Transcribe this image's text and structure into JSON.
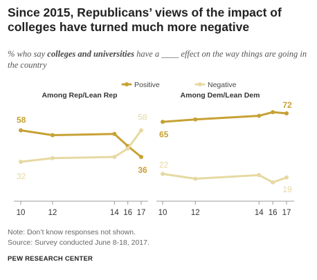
{
  "title": "Since 2015, Republicans’ views of the impact of colleges have turned much more negative",
  "subtitle": {
    "prefix": "% who say ",
    "emphasis": "colleges and universities",
    "suffix": " have a ____ effect on the way things are going in the country"
  },
  "legend": {
    "positive": "Positive",
    "negative": "Negative"
  },
  "colors": {
    "positive": "#c6a134",
    "negative": "#e6d9a2",
    "axis": "#9b9b9b",
    "label": "#555555"
  },
  "chart_data": [
    {
      "type": "line",
      "title": "Among Rep/Lean Rep",
      "x": [
        2010,
        2011.9,
        2015.6,
        2016.4,
        2017.2
      ],
      "xticks": [
        "10",
        "12",
        "14",
        "16",
        "17"
      ],
      "xlim": [
        2010,
        2017.2
      ],
      "ylim": [
        0,
        80
      ],
      "series": [
        {
          "name": "Positive",
          "values": [
            58,
            54,
            55,
            45,
            36
          ]
        },
        {
          "name": "Negative",
          "values": [
            32,
            35,
            36,
            43,
            58
          ]
        }
      ],
      "data_labels": [
        {
          "series": "Positive",
          "text": "58"
        },
        {
          "series": "Negative",
          "text": "32"
        },
        {
          "series": "Positive",
          "text": "36"
        },
        {
          "series": "Negative",
          "text": "58"
        }
      ]
    },
    {
      "type": "line",
      "title": "Among Dem/Lean Dem",
      "x": [
        2010,
        2011.9,
        2015.6,
        2016.4,
        2017.2
      ],
      "xticks": [
        "10",
        "12",
        "14",
        "16",
        "17"
      ],
      "xlim": [
        2010,
        2017.2
      ],
      "ylim": [
        0,
        80
      ],
      "series": [
        {
          "name": "Positive",
          "values": [
            65,
            67,
            70,
            73,
            72
          ]
        },
        {
          "name": "Negative",
          "values": [
            22,
            18,
            21,
            15,
            19
          ]
        }
      ],
      "data_labels": [
        {
          "series": "Positive",
          "text": "65"
        },
        {
          "series": "Negative",
          "text": "22"
        },
        {
          "series": "Positive",
          "text": "72"
        },
        {
          "series": "Negative",
          "text": "19"
        }
      ]
    }
  ],
  "note": "Note: Don’t know responses not shown.",
  "source": "Source: Survey conducted June 8-18, 2017.",
  "brand": "PEW RESEARCH CENTER"
}
